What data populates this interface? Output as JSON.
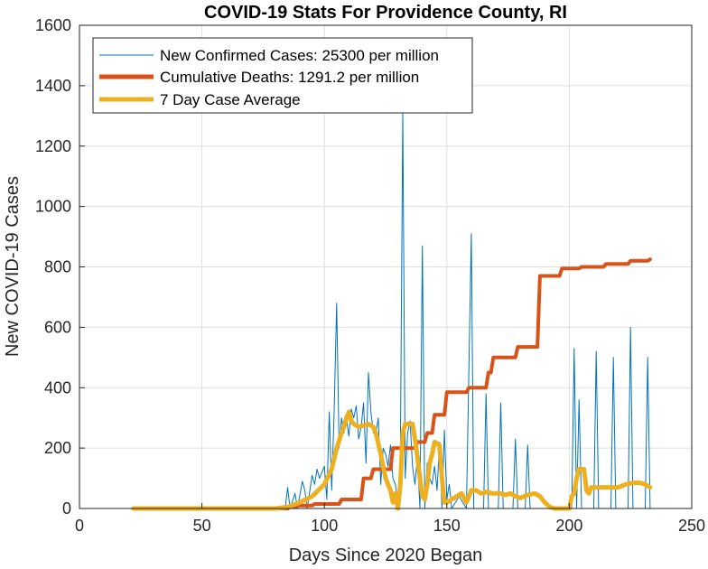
{
  "chart_data": {
    "type": "line",
    "title": "COVID-19 Stats For Providence County, RI",
    "xlabel": "Days Since 2020 Began",
    "ylabel": "New COVID-19 Cases",
    "xlim": [
      0,
      250
    ],
    "ylim": [
      0,
      1600
    ],
    "xticks": [
      0,
      50,
      100,
      150,
      200,
      250
    ],
    "yticks": [
      0,
      200,
      400,
      600,
      800,
      1000,
      1200,
      1400,
      1600
    ],
    "grid": true,
    "legend_position": "top-left",
    "series": [
      {
        "name": "New Confirmed Cases: 25300 per million",
        "color": "#0072BD",
        "line_width": 1,
        "points": [
          [
            22,
            0
          ],
          [
            84,
            0
          ],
          [
            85,
            70
          ],
          [
            86,
            0
          ],
          [
            88,
            50
          ],
          [
            89,
            0
          ],
          [
            91,
            90
          ],
          [
            92,
            60
          ],
          [
            93,
            0
          ],
          [
            95,
            110
          ],
          [
            96,
            80
          ],
          [
            97,
            130
          ],
          [
            98,
            100
          ],
          [
            99,
            120
          ],
          [
            100,
            140
          ],
          [
            101,
            30
          ],
          [
            102,
            320
          ],
          [
            103,
            60
          ],
          [
            104,
            320
          ],
          [
            105,
            680
          ],
          [
            106,
            200
          ],
          [
            107,
            300
          ],
          [
            108,
            250
          ],
          [
            109,
            300
          ],
          [
            110,
            240
          ],
          [
            111,
            330
          ],
          [
            112,
            300
          ],
          [
            113,
            340
          ],
          [
            114,
            230
          ],
          [
            115,
            270
          ],
          [
            116,
            350
          ],
          [
            117,
            150
          ],
          [
            118,
            450
          ],
          [
            119,
            320
          ],
          [
            120,
            250
          ],
          [
            121,
            250
          ],
          [
            122,
            300
          ],
          [
            123,
            80
          ],
          [
            124,
            200
          ],
          [
            125,
            180
          ],
          [
            126,
            140
          ],
          [
            127,
            210
          ],
          [
            128,
            100
          ],
          [
            129,
            80
          ],
          [
            130,
            20
          ],
          [
            131,
            150
          ],
          [
            132,
            1310
          ],
          [
            133,
            100
          ],
          [
            134,
            250
          ],
          [
            135,
            290
          ],
          [
            136,
            140
          ],
          [
            137,
            80
          ],
          [
            138,
            170
          ],
          [
            139,
            0
          ],
          [
            140,
            870
          ],
          [
            141,
            0
          ],
          [
            142,
            150
          ],
          [
            143,
            100
          ],
          [
            144,
            80
          ],
          [
            145,
            140
          ],
          [
            146,
            60
          ],
          [
            147,
            220
          ],
          [
            148,
            0
          ],
          [
            149,
            260
          ],
          [
            150,
            30
          ],
          [
            151,
            80
          ],
          [
            152,
            0
          ],
          [
            155,
            40
          ],
          [
            158,
            0
          ],
          [
            160,
            910
          ],
          [
            161,
            0
          ],
          [
            165,
            0
          ],
          [
            166,
            380
          ],
          [
            167,
            0
          ],
          [
            170,
            0
          ],
          [
            171,
            0
          ],
          [
            172,
            350
          ],
          [
            173,
            0
          ],
          [
            176,
            0
          ],
          [
            177,
            0
          ],
          [
            178,
            230
          ],
          [
            179,
            0
          ],
          [
            182,
            0
          ],
          [
            183,
            210
          ],
          [
            184,
            0
          ],
          [
            190,
            0
          ],
          [
            201,
            0
          ],
          [
            202,
            530
          ],
          [
            203,
            0
          ],
          [
            204,
            360
          ],
          [
            205,
            0
          ],
          [
            210,
            0
          ],
          [
            211,
            520
          ],
          [
            212,
            0
          ],
          [
            217,
            0
          ],
          [
            218,
            500
          ],
          [
            219,
            0
          ],
          [
            224,
            0
          ],
          [
            225,
            600
          ],
          [
            226,
            0
          ],
          [
            231,
            0
          ],
          [
            232,
            500
          ],
          [
            233,
            0
          ]
        ]
      },
      {
        "name": "Cumulative Deaths: 1291.2 per million",
        "color": "#D95319",
        "line_width": 4,
        "points": [
          [
            22,
            0
          ],
          [
            85,
            0
          ],
          [
            86,
            5
          ],
          [
            88,
            5
          ],
          [
            89,
            10
          ],
          [
            95,
            10
          ],
          [
            96,
            15
          ],
          [
            106,
            15
          ],
          [
            107,
            30
          ],
          [
            115,
            30
          ],
          [
            116,
            100
          ],
          [
            119,
            100
          ],
          [
            120,
            130
          ],
          [
            127,
            130
          ],
          [
            128,
            200
          ],
          [
            137,
            200
          ],
          [
            138,
            220
          ],
          [
            141,
            220
          ],
          [
            142,
            250
          ],
          [
            144,
            250
          ],
          [
            145,
            310
          ],
          [
            149,
            310
          ],
          [
            150,
            385
          ],
          [
            158,
            385
          ],
          [
            159,
            400
          ],
          [
            166,
            400
          ],
          [
            167,
            450
          ],
          [
            168,
            450
          ],
          [
            169,
            500
          ],
          [
            175,
            500
          ],
          [
            176,
            500
          ],
          [
            178,
            500
          ],
          [
            179,
            535
          ],
          [
            187,
            535
          ],
          [
            188,
            770
          ],
          [
            196,
            770
          ],
          [
            197,
            795
          ],
          [
            204,
            795
          ],
          [
            205,
            800
          ],
          [
            214,
            800
          ],
          [
            215,
            810
          ],
          [
            224,
            810
          ],
          [
            225,
            820
          ],
          [
            232,
            820
          ],
          [
            233,
            825
          ]
        ]
      },
      {
        "name": "7 Day Case Average",
        "color": "#EDB120",
        "line_width": 5,
        "points": [
          [
            22,
            0
          ],
          [
            80,
            0
          ],
          [
            85,
            5
          ],
          [
            90,
            20
          ],
          [
            95,
            40
          ],
          [
            100,
            80
          ],
          [
            103,
            130
          ],
          [
            105,
            200
          ],
          [
            107,
            250
          ],
          [
            108,
            270
          ],
          [
            109,
            300
          ],
          [
            110,
            320
          ],
          [
            111,
            290
          ],
          [
            112,
            280
          ],
          [
            114,
            270
          ],
          [
            116,
            275
          ],
          [
            118,
            280
          ],
          [
            120,
            270
          ],
          [
            121,
            250
          ],
          [
            123,
            180
          ],
          [
            125,
            100
          ],
          [
            127,
            60
          ],
          [
            128,
            20
          ],
          [
            129,
            50
          ],
          [
            130,
            0
          ],
          [
            131,
            80
          ],
          [
            132,
            250
          ],
          [
            133,
            280
          ],
          [
            135,
            280
          ],
          [
            136,
            280
          ],
          [
            137,
            230
          ],
          [
            138,
            170
          ],
          [
            139,
            100
          ],
          [
            140,
            40
          ],
          [
            141,
            30
          ],
          [
            142,
            80
          ],
          [
            143,
            150
          ],
          [
            144,
            180
          ],
          [
            145,
            220
          ],
          [
            147,
            210
          ],
          [
            148,
            100
          ],
          [
            149,
            20
          ],
          [
            150,
            20
          ],
          [
            152,
            30
          ],
          [
            154,
            40
          ],
          [
            156,
            50
          ],
          [
            158,
            20
          ],
          [
            160,
            60
          ],
          [
            161,
            60
          ],
          [
            162,
            60
          ],
          [
            163,
            55
          ],
          [
            164,
            50
          ],
          [
            165,
            50
          ],
          [
            166,
            55
          ],
          [
            167,
            55
          ],
          [
            168,
            50
          ],
          [
            170,
            50
          ],
          [
            172,
            50
          ],
          [
            174,
            45
          ],
          [
            176,
            50
          ],
          [
            178,
            40
          ],
          [
            180,
            35
          ],
          [
            183,
            45
          ],
          [
            186,
            50
          ],
          [
            188,
            40
          ],
          [
            190,
            20
          ],
          [
            192,
            5
          ],
          [
            194,
            0
          ],
          [
            200,
            0
          ],
          [
            201,
            40
          ],
          [
            202,
            50
          ],
          [
            203,
            100
          ],
          [
            204,
            130
          ],
          [
            206,
            130
          ],
          [
            207,
            60
          ],
          [
            208,
            50
          ],
          [
            209,
            70
          ],
          [
            210,
            70
          ],
          [
            215,
            70
          ],
          [
            220,
            70
          ],
          [
            223,
            80
          ],
          [
            226,
            85
          ],
          [
            229,
            85
          ],
          [
            231,
            80
          ],
          [
            233,
            70
          ]
        ]
      }
    ]
  }
}
